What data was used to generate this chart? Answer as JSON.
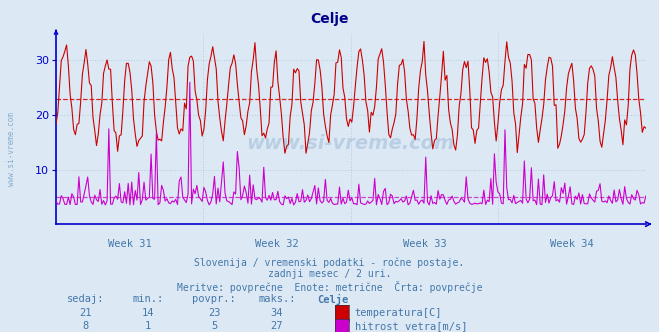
{
  "title": "Celje",
  "bg_color": "#dce9f5",
  "plot_bg_color": "#dce9f5",
  "grid_color": "#b8c8dc",
  "temp_color": "#cc0000",
  "wind_color": "#cc00cc",
  "avg_temp_color": "#dd2222",
  "avg_wind_color": "#cc44cc",
  "axis_color": "#0000cc",
  "text_color": "#4477aa",
  "title_color": "#000088",
  "week_labels": [
    "Week 31",
    "Week 32",
    "Week 33",
    "Week 34"
  ],
  "ylim": [
    0,
    35
  ],
  "yticks": [
    10,
    20,
    30
  ],
  "avg_temp": 23,
  "avg_wind": 5,
  "temp_min": 14,
  "temp_max": 34,
  "temp_now": 21,
  "temp_avg": 23,
  "wind_min": 1,
  "wind_max": 27,
  "wind_now": 8,
  "wind_avg": 5,
  "subtitle1": "Slovenija / vremenski podatki - ročne postaje.",
  "subtitle2": "zadnji mesec / 2 uri.",
  "subtitle3": "Meritve: povprečne  Enote: metrične  Črta: povprečje",
  "legend_title": "Celje",
  "label_sedaj": "sedaj:",
  "label_min": "min.:",
  "label_povpr": "povpr.:",
  "label_maks": "maks.:",
  "label_temp": "temperatura[C]",
  "label_wind": "hitrost vetra[m/s]",
  "n_points": 336,
  "watermark": "www.si-vreme.com"
}
